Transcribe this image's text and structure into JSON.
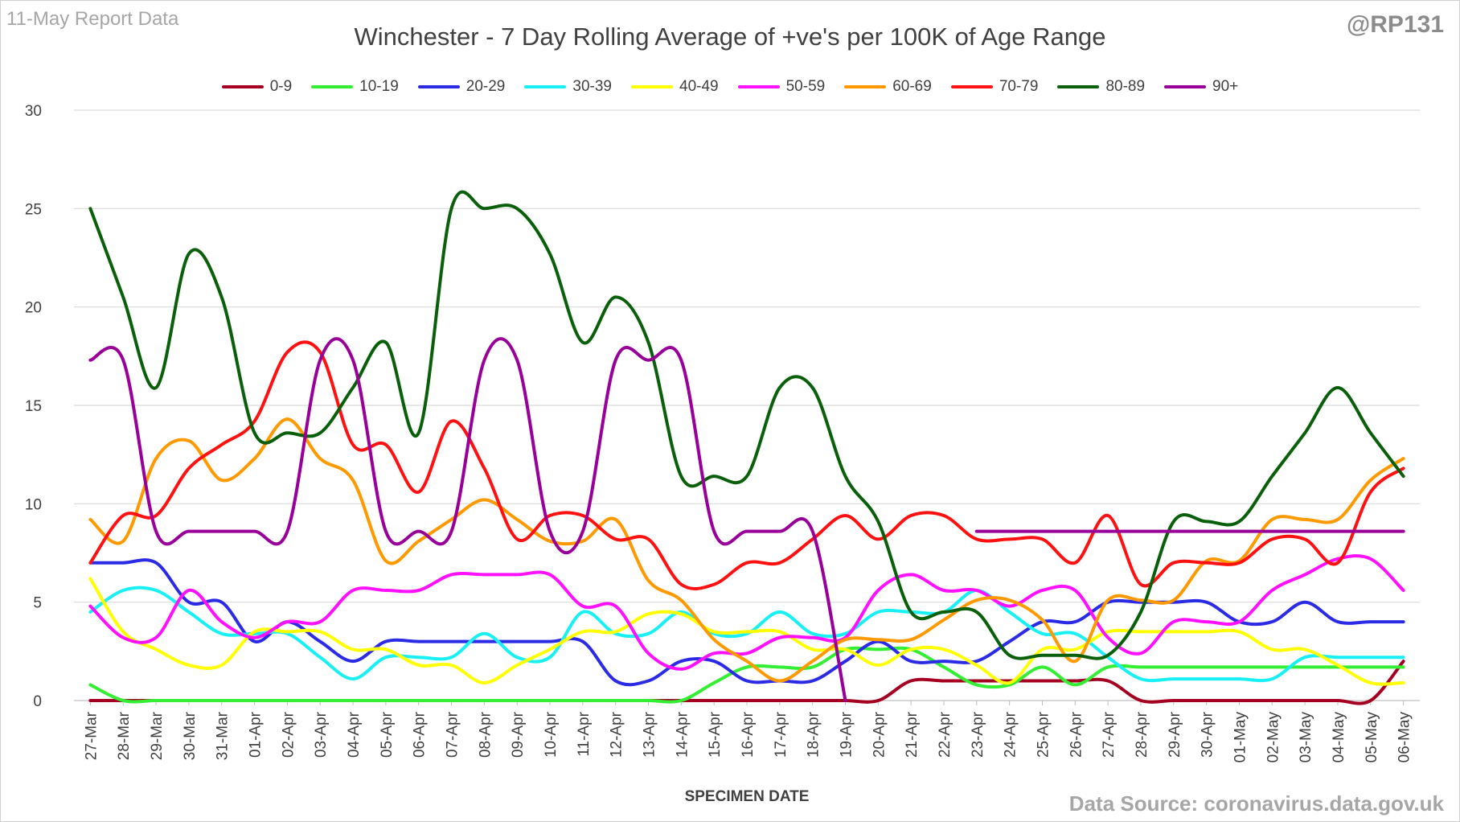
{
  "header": {
    "report_label": "11-May Report Data",
    "title": "Winchester - 7 Day Rolling Average of +ve's per 100K of Age Range",
    "handle": "@RP131"
  },
  "footer": {
    "source": "Data Source: coronavirus.data.gov.uk"
  },
  "chart_data": {
    "type": "line",
    "title": "Winchester - 7 Day Rolling Average of +ve's per 100K of Age Range",
    "xlabel": "SPECIMEN DATE",
    "ylabel": "",
    "ylim": [
      0,
      30
    ],
    "yticks": [
      0,
      5,
      10,
      15,
      20,
      25,
      30
    ],
    "grid": "horizontal",
    "legend_position": "top",
    "categories": [
      "27-Mar",
      "28-Mar",
      "29-Mar",
      "30-Mar",
      "31-Mar",
      "01-Apr",
      "02-Apr",
      "03-Apr",
      "04-Apr",
      "05-Apr",
      "06-Apr",
      "07-Apr",
      "08-Apr",
      "09-Apr",
      "10-Apr",
      "11-Apr",
      "12-Apr",
      "13-Apr",
      "14-Apr",
      "15-Apr",
      "16-Apr",
      "17-Apr",
      "18-Apr",
      "19-Apr",
      "20-Apr",
      "21-Apr",
      "22-Apr",
      "23-Apr",
      "24-Apr",
      "25-Apr",
      "26-Apr",
      "27-Apr",
      "28-Apr",
      "29-Apr",
      "30-Apr",
      "01-May",
      "02-May",
      "03-May",
      "04-May",
      "05-May",
      "06-May"
    ],
    "series": [
      {
        "name": "0-9",
        "color": "#a50021",
        "values": [
          0,
          0,
          0,
          0,
          0,
          0,
          0,
          0,
          0,
          0,
          0,
          0,
          0,
          0,
          0,
          0,
          0,
          0,
          0,
          0,
          0,
          0,
          0,
          0,
          0,
          1,
          1,
          1,
          1,
          1,
          1,
          1,
          0,
          0,
          0,
          0,
          0,
          0,
          0,
          0,
          2
        ]
      },
      {
        "name": "10-19",
        "color": "#33ee33",
        "values": [
          0.8,
          0,
          0,
          0,
          0,
          0,
          0,
          0,
          0,
          0,
          0,
          0,
          0,
          0,
          0,
          0,
          0,
          0,
          0,
          0.9,
          1.7,
          1.7,
          1.7,
          2.6,
          2.6,
          2.6,
          1.7,
          0.8,
          0.8,
          1.7,
          0.8,
          1.7,
          1.7,
          1.7,
          1.7,
          1.7,
          1.7,
          1.7,
          1.7,
          1.7,
          1.7
        ]
      },
      {
        "name": "20-29",
        "color": "#2b2be6",
        "values": [
          7,
          7,
          7,
          5,
          5,
          3,
          4,
          3,
          2,
          3,
          3,
          3,
          3,
          3,
          3,
          3,
          1,
          1,
          2,
          2,
          1,
          1,
          1,
          2,
          3,
          2,
          2,
          2,
          3,
          4,
          4,
          5,
          5,
          5,
          5,
          4,
          4,
          5,
          4,
          4,
          4
        ]
      },
      {
        "name": "30-39",
        "color": "#19f0f5",
        "values": [
          4.5,
          5.6,
          5.6,
          4.5,
          3.4,
          3.4,
          3.4,
          2.2,
          1.1,
          2.2,
          2.2,
          2.2,
          3.4,
          2.2,
          2.2,
          4.5,
          3.4,
          3.4,
          4.5,
          3.4,
          3.4,
          4.5,
          3.4,
          3.4,
          4.5,
          4.5,
          4.5,
          5.6,
          4.5,
          3.4,
          3.4,
          2.2,
          1.1,
          1.1,
          1.1,
          1.1,
          1.1,
          2.2,
          2.2,
          2.2,
          2.2
        ]
      },
      {
        "name": "40-49",
        "color": "#ffff00",
        "values": [
          6.2,
          3.5,
          2.6,
          1.8,
          1.8,
          3.5,
          3.5,
          3.5,
          2.6,
          2.6,
          1.8,
          1.8,
          0.9,
          1.8,
          2.6,
          3.5,
          3.5,
          4.4,
          4.4,
          3.5,
          3.5,
          3.5,
          2.6,
          2.6,
          1.8,
          2.6,
          2.6,
          1.8,
          0.9,
          2.6,
          2.6,
          3.5,
          3.5,
          3.5,
          3.5,
          3.5,
          2.6,
          2.6,
          1.8,
          0.9,
          0.9
        ]
      },
      {
        "name": "50-59",
        "color": "#ff11ff",
        "values": [
          4.8,
          3.2,
          3.2,
          5.6,
          4,
          3.2,
          4,
          4,
          5.6,
          5.6,
          5.6,
          6.4,
          6.4,
          6.4,
          6.4,
          4.8,
          4.8,
          2.4,
          1.6,
          2.4,
          2.4,
          3.2,
          3.2,
          3.2,
          5.6,
          6.4,
          5.6,
          5.6,
          4.8,
          5.6,
          5.6,
          3.2,
          2.4,
          4,
          4,
          4,
          5.6,
          6.4,
          7.2,
          7.2,
          5.6
        ]
      },
      {
        "name": "60-69",
        "color": "#ff9900",
        "values": [
          9.2,
          8.1,
          12.3,
          13.2,
          11.2,
          12.3,
          14.3,
          12.3,
          11.2,
          7.1,
          8.1,
          9.2,
          10.2,
          9.2,
          8.1,
          8.1,
          9.2,
          6.1,
          5.1,
          3.1,
          2,
          1,
          2,
          3.1,
          3.1,
          3.1,
          4.1,
          5.1,
          5.1,
          4.1,
          2,
          5.1,
          5.1,
          5.1,
          7.1,
          7.1,
          9.2,
          9.2,
          9.2,
          11.2,
          12.3
        ]
      },
      {
        "name": "70-79",
        "color": "#ff1111",
        "values": [
          7,
          9.4,
          9.4,
          11.8,
          13,
          14.2,
          17.7,
          17.7,
          13,
          13,
          10.6,
          14.2,
          11.8,
          8.2,
          9.4,
          9.4,
          8.2,
          8.2,
          5.9,
          5.9,
          7,
          7,
          8.2,
          9.4,
          8.2,
          9.4,
          9.4,
          8.2,
          8.2,
          8.2,
          7,
          9.4,
          5.9,
          7,
          7,
          7,
          8.2,
          8.2,
          7,
          10.6,
          11.8
        ]
      },
      {
        "name": "80-89",
        "color": "#0a5f0a",
        "values": [
          25,
          20.5,
          15.9,
          22.7,
          20.5,
          13.6,
          13.6,
          13.6,
          15.9,
          18.2,
          13.6,
          25,
          25,
          25,
          22.7,
          18.2,
          20.5,
          18.2,
          11.4,
          11.4,
          11.4,
          15.9,
          15.9,
          11.4,
          9.1,
          4.5,
          4.5,
          4.5,
          2.3,
          2.3,
          2.3,
          2.3,
          4.5,
          9.1,
          9.1,
          9.1,
          11.4,
          13.6,
          15.9,
          13.6,
          11.4
        ]
      },
      {
        "name": "90+",
        "color": "#990099",
        "values": [
          17.3,
          17.3,
          8.6,
          8.6,
          8.6,
          8.6,
          8.6,
          17.3,
          17.3,
          8.6,
          8.6,
          8.6,
          17.3,
          17.3,
          8.6,
          8.6,
          17.3,
          17.3,
          17.3,
          8.6,
          8.6,
          8.6,
          8.6,
          0,
          null,
          null,
          null,
          8.6,
          8.6,
          8.6,
          8.6,
          8.6,
          8.6,
          8.6,
          8.6,
          8.6,
          8.6,
          8.6,
          8.6,
          8.6,
          8.6
        ]
      }
    ]
  }
}
